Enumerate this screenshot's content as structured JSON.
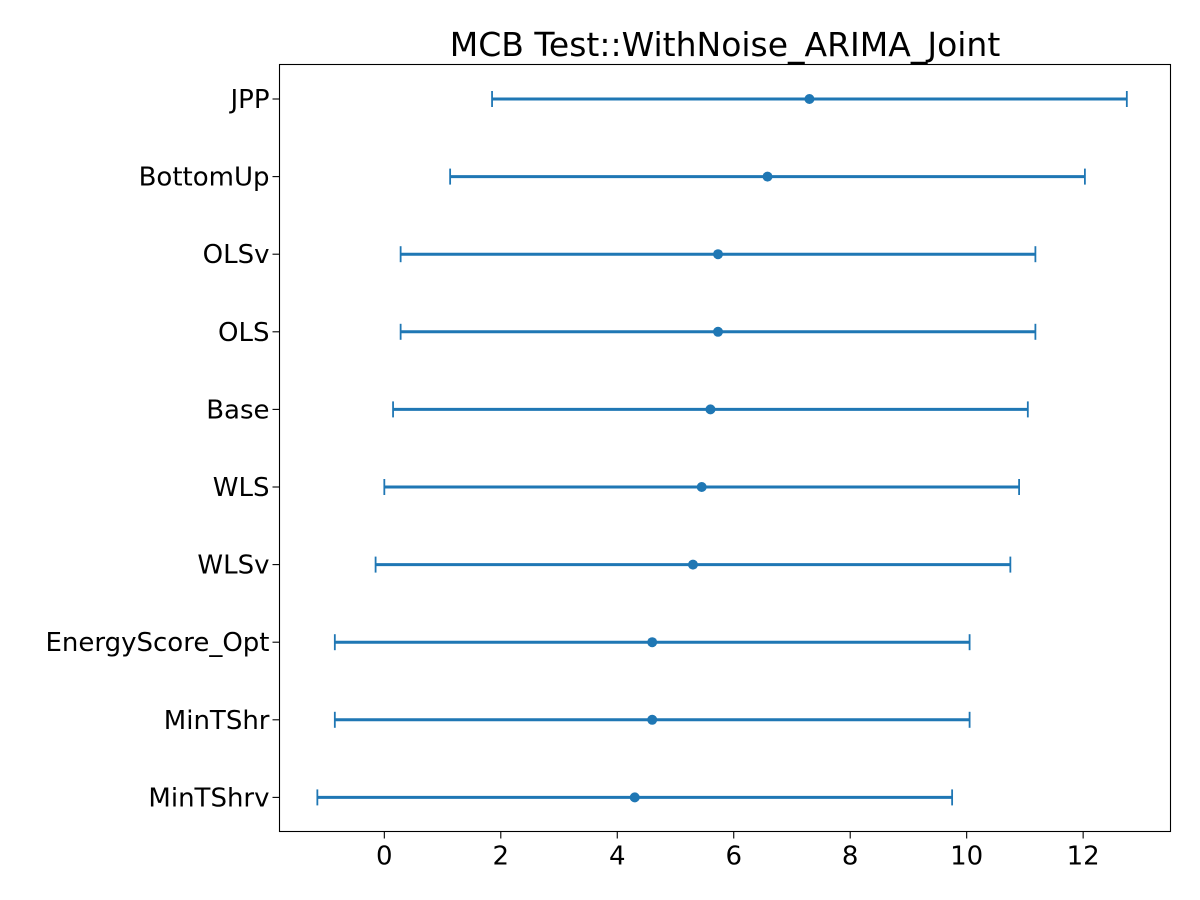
{
  "chart_data": {
    "type": "errorbar",
    "title": "MCB Test::WithNoise_ARIMA_Joint",
    "xlabel": "",
    "ylabel": "",
    "xlim": [
      -1.8,
      13.5
    ],
    "x_ticks": [
      0,
      2,
      4,
      6,
      8,
      10,
      12
    ],
    "grid": false,
    "color": "#1f77b4",
    "categories": [
      "JPP",
      "BottomUp",
      "OLSv",
      "OLS",
      "Base",
      "WLS",
      "WLSv",
      "EnergyScore_Opt",
      "MinTShr",
      "MinTShrv"
    ],
    "points": [
      {
        "label": "JPP",
        "center": 7.3,
        "lower": 1.85,
        "upper": 12.75
      },
      {
        "label": "BottomUp",
        "center": 6.58,
        "lower": 1.13,
        "upper": 12.03
      },
      {
        "label": "OLSv",
        "center": 5.73,
        "lower": 0.28,
        "upper": 11.18
      },
      {
        "label": "OLS",
        "center": 5.73,
        "lower": 0.28,
        "upper": 11.18
      },
      {
        "label": "Base",
        "center": 5.6,
        "lower": 0.15,
        "upper": 11.05
      },
      {
        "label": "WLS",
        "center": 5.45,
        "lower": 0.0,
        "upper": 10.9
      },
      {
        "label": "WLSv",
        "center": 5.3,
        "lower": -0.15,
        "upper": 10.75
      },
      {
        "label": "EnergyScore_Opt",
        "center": 4.6,
        "lower": -0.85,
        "upper": 10.05
      },
      {
        "label": "MinTShr",
        "center": 4.6,
        "lower": -0.85,
        "upper": 10.05
      },
      {
        "label": "MinTShrv",
        "center": 4.3,
        "lower": -1.15,
        "upper": 9.75
      }
    ]
  }
}
